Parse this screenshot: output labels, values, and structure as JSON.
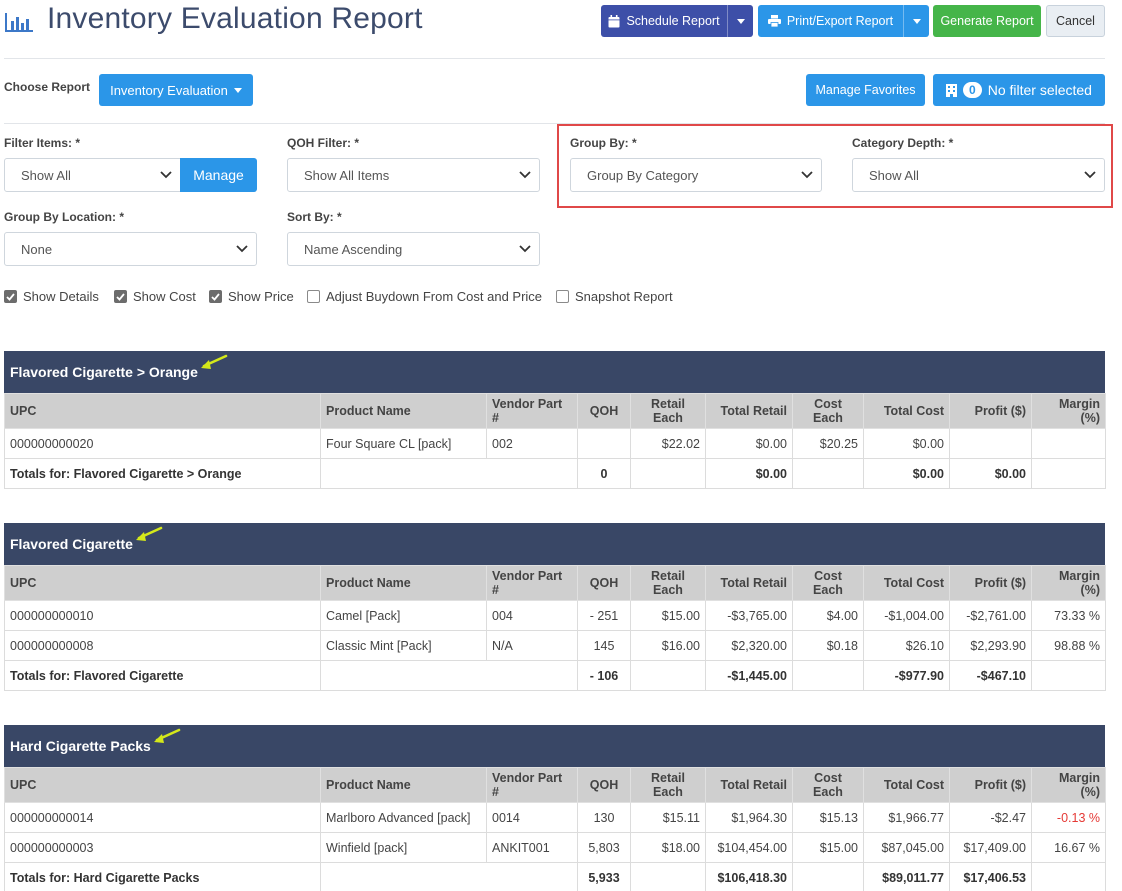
{
  "header": {
    "title": "Inventory Evaluation Report",
    "buttons": {
      "schedule": "Schedule Report",
      "print": "Print/Export Report",
      "generate": "Generate Report",
      "cancel": "Cancel"
    }
  },
  "report_bar": {
    "choose_label": "Choose Report",
    "report_selected": "Inventory Evaluation",
    "manage_favorites": "Manage Favorites",
    "filter_count": "0",
    "filter_text": "No filter selected"
  },
  "filters": {
    "filter_items": {
      "label": "Filter Items: *",
      "value": "Show All",
      "manage": "Manage"
    },
    "qoh_filter": {
      "label": "QOH Filter: *",
      "value": "Show All Items"
    },
    "group_by": {
      "label": "Group By: *",
      "value": "Group By Category"
    },
    "category_depth": {
      "label": "Category Depth: *",
      "value": "Show All"
    },
    "group_by_location": {
      "label": "Group By Location: *",
      "value": "None"
    },
    "sort_by": {
      "label": "Sort By: *",
      "value": "Name Ascending"
    }
  },
  "options": [
    {
      "label": "Show Details",
      "checked": true
    },
    {
      "label": "Show Cost",
      "checked": true
    },
    {
      "label": "Show Price",
      "checked": true
    },
    {
      "label": "Adjust Buydown From Cost and Price",
      "checked": false
    },
    {
      "label": "Snapshot Report",
      "checked": false
    }
  ],
  "columns": [
    "UPC",
    "Product Name",
    "Vendor Part #",
    "QOH",
    "Retail Each",
    "Total Retail",
    "Cost Each",
    "Total Cost",
    "Profit ($)",
    "Margin (%)"
  ],
  "sections": [
    {
      "title": "Flavored Cigarette > Orange",
      "rows": [
        [
          "000000000020",
          "Four Square CL [pack]",
          "002",
          "",
          "$22.02",
          "$0.00",
          "$20.25",
          "$0.00",
          "",
          ""
        ]
      ],
      "totals": {
        "label": "Totals for: Flavored Cigarette > Orange",
        "qoh": "0",
        "total_retail": "$0.00",
        "total_cost": "$0.00",
        "profit": "$0.00"
      }
    },
    {
      "title": "Flavored Cigarette",
      "rows": [
        [
          "000000000010",
          "Camel [Pack]",
          "004",
          "- 251",
          "$15.00",
          "-$3,765.00",
          "$4.00",
          "-$1,004.00",
          "-$2,761.00",
          "73.33 %"
        ],
        [
          "000000000008",
          "Classic Mint [Pack]",
          "N/A",
          "145",
          "$16.00",
          "$2,320.00",
          "$0.18",
          "$26.10",
          "$2,293.90",
          "98.88 %"
        ]
      ],
      "totals": {
        "label": "Totals for: Flavored Cigarette",
        "qoh": "- 106",
        "total_retail": "-$1,445.00",
        "total_cost": "-$977.90",
        "profit": "-$467.10"
      }
    },
    {
      "title": "Hard Cigarette Packs",
      "rows": [
        [
          "000000000014",
          "Marlboro Advanced [pack]",
          "0014",
          "130",
          "$15.11",
          "$1,964.30",
          "$15.13",
          "$1,966.77",
          "-$2.47",
          "-0.13 %"
        ],
        [
          "000000000003",
          "Winfield [pack]",
          "ANKIT001",
          "5,803",
          "$18.00",
          "$104,454.00",
          "$15.00",
          "$87,045.00",
          "$17,409.00",
          "16.67 %"
        ]
      ],
      "totals": {
        "label": "Totals for: Hard Cigarette Packs",
        "qoh": "5,933",
        "total_retail": "$106,418.30",
        "total_cost": "$89,011.77",
        "profit": "$17,406.53"
      }
    }
  ],
  "colors": {
    "header_bg": "#394766",
    "primary": "#2b96e8",
    "schedule": "#3d4fa8",
    "success": "#45b549",
    "negative_margin": "#e53935",
    "highlight": "#e04848",
    "arrow": "#d4e81a"
  }
}
